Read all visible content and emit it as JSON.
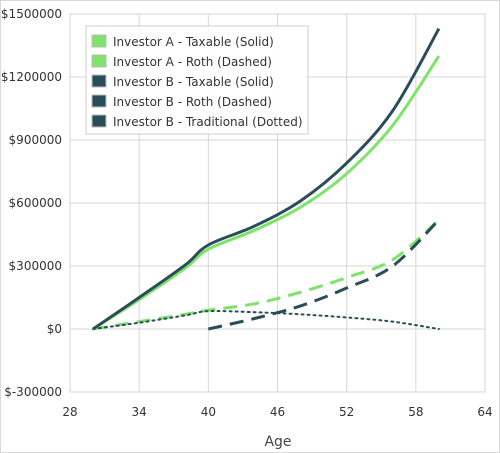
{
  "chart_data": {
    "type": "line",
    "title": "",
    "xlabel": "Age",
    "ylabel": "",
    "xlim": [
      28,
      64
    ],
    "ylim": [
      -300000,
      1500000
    ],
    "x_ticks": [
      28,
      34,
      40,
      46,
      52,
      58,
      64
    ],
    "y_ticks": [
      -300000,
      0,
      300000,
      600000,
      900000,
      1200000,
      1500000
    ],
    "y_tick_labels": [
      "$-300000",
      "$0",
      "$300000",
      "$600000",
      "$900000",
      "$1200000",
      "$1500000"
    ],
    "grid": true,
    "legend_position": "top-left",
    "series": [
      {
        "name": "Investor A - Taxable (Solid)",
        "color": "#7ee36a",
        "style": "solid",
        "x": [
          30,
          34,
          38,
          40,
          44,
          48,
          52,
          56,
          60
        ],
        "y": [
          0,
          140000,
          290000,
          380000,
          470000,
          580000,
          740000,
          970000,
          1300000
        ]
      },
      {
        "name": "Investor A - Roth (Dashed)",
        "color": "#7ee36a",
        "style": "dashed",
        "x": [
          30,
          34,
          38,
          40,
          44,
          48,
          52,
          56,
          60
        ],
        "y": [
          0,
          35000,
          70000,
          90000,
          120000,
          175000,
          245000,
          330000,
          520000
        ]
      },
      {
        "name": "Investor B - Taxable (Solid)",
        "color": "#2b4d5a",
        "style": "solid",
        "x": [
          30,
          34,
          38,
          40,
          44,
          48,
          52,
          56,
          60
        ],
        "y": [
          0,
          150000,
          305000,
          400000,
          490000,
          610000,
          790000,
          1040000,
          1430000
        ]
      },
      {
        "name": "Investor B - Roth (Dashed)",
        "color": "#2b4d5a",
        "style": "dashed",
        "x": [
          40,
          44,
          48,
          52,
          56,
          60
        ],
        "y": [
          0,
          50000,
          110000,
          195000,
          300000,
          520000
        ]
      },
      {
        "name": "Investor B - Traditional (Dotted)",
        "color": "#2b4d5a",
        "style": "dotted",
        "x": [
          30,
          34,
          38,
          40,
          44,
          48,
          52,
          56,
          60
        ],
        "y": [
          0,
          30000,
          65000,
          85000,
          80000,
          70000,
          55000,
          35000,
          0
        ]
      }
    ]
  }
}
